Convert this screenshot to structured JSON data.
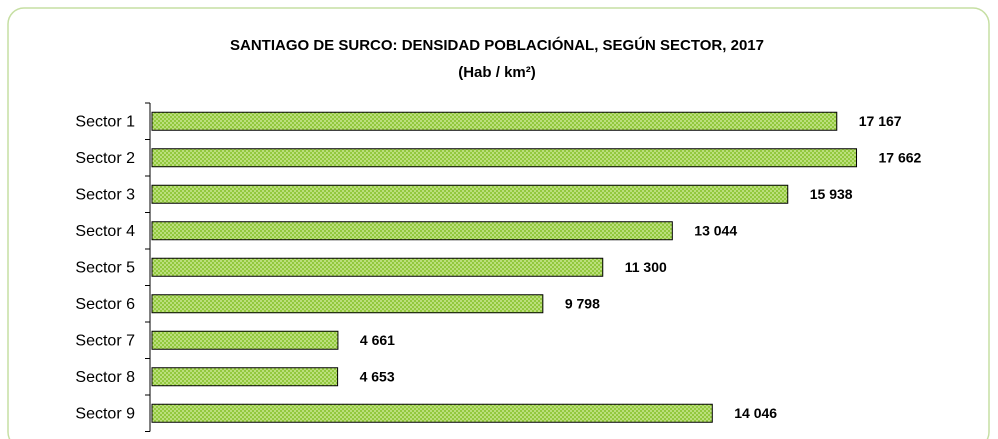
{
  "chart_data": {
    "type": "bar",
    "orientation": "horizontal",
    "title": "SANTIAGO DE SURCO: DENSIDAD POBLACIÓNAL, SEGÚN SECTOR, 2017",
    "subtitle": "(Hab / km²)",
    "categories": [
      "Sector 1",
      "Sector 2",
      "Sector 3",
      "Sector 4",
      "Sector 5",
      "Sector 6",
      "Sector 7",
      "Sector 8",
      "Sector 9"
    ],
    "values": [
      17167,
      17662,
      15938,
      13044,
      11300,
      9798,
      4661,
      4653,
      14046
    ],
    "value_labels": [
      "17 167",
      "17 662",
      "15 938",
      "13 044",
      "11 300",
      "9 798",
      "4 661",
      "4 653",
      "14 046"
    ],
    "color": "#92c83e",
    "xlim": [
      0,
      18000
    ]
  }
}
